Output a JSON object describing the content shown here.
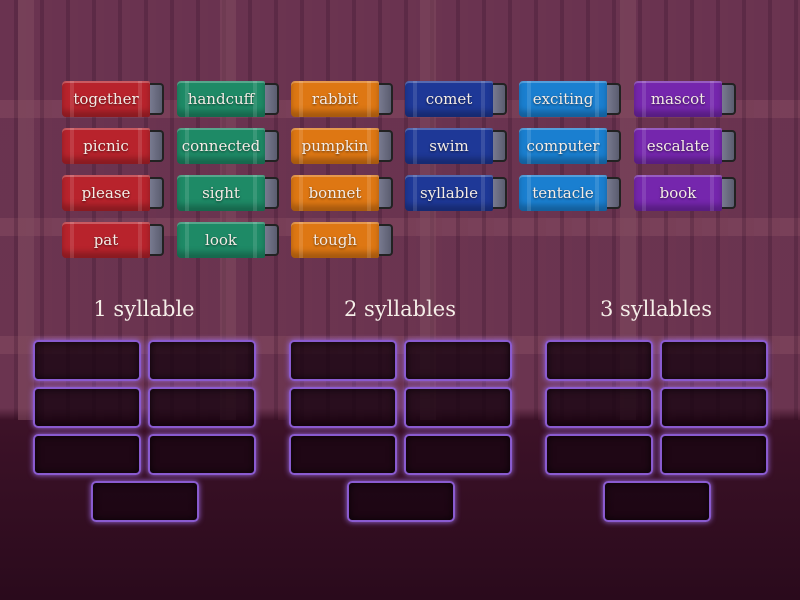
{
  "colors": {
    "red": "#b8232c",
    "green": "#1e8a66",
    "orange": "#de7713",
    "navy": "#1e3897",
    "blue": "#1a7fd0",
    "purple": "#7526ad",
    "slot_border": "#8a5bd0"
  },
  "books": [
    {
      "label": "together",
      "color": "red"
    },
    {
      "label": "handcuff",
      "color": "green"
    },
    {
      "label": "rabbit",
      "color": "orange"
    },
    {
      "label": "comet",
      "color": "navy"
    },
    {
      "label": "exciting",
      "color": "blue"
    },
    {
      "label": "mascot",
      "color": "purple"
    },
    {
      "label": "picnic",
      "color": "red"
    },
    {
      "label": "connected",
      "color": "green"
    },
    {
      "label": "pumpkin",
      "color": "orange"
    },
    {
      "label": "swim",
      "color": "navy"
    },
    {
      "label": "computer",
      "color": "blue"
    },
    {
      "label": "escalate",
      "color": "purple"
    },
    {
      "label": "please",
      "color": "red"
    },
    {
      "label": "sight",
      "color": "green"
    },
    {
      "label": "bonnet",
      "color": "orange"
    },
    {
      "label": "syllable",
      "color": "navy"
    },
    {
      "label": "tentacle",
      "color": "blue"
    },
    {
      "label": "book",
      "color": "purple"
    },
    {
      "label": "pat",
      "color": "red"
    },
    {
      "label": "look",
      "color": "green"
    },
    {
      "label": "tough",
      "color": "orange"
    }
  ],
  "groups": [
    {
      "title": "1 syllable"
    },
    {
      "title": "2 syllables"
    },
    {
      "title": "3 syllables"
    }
  ]
}
